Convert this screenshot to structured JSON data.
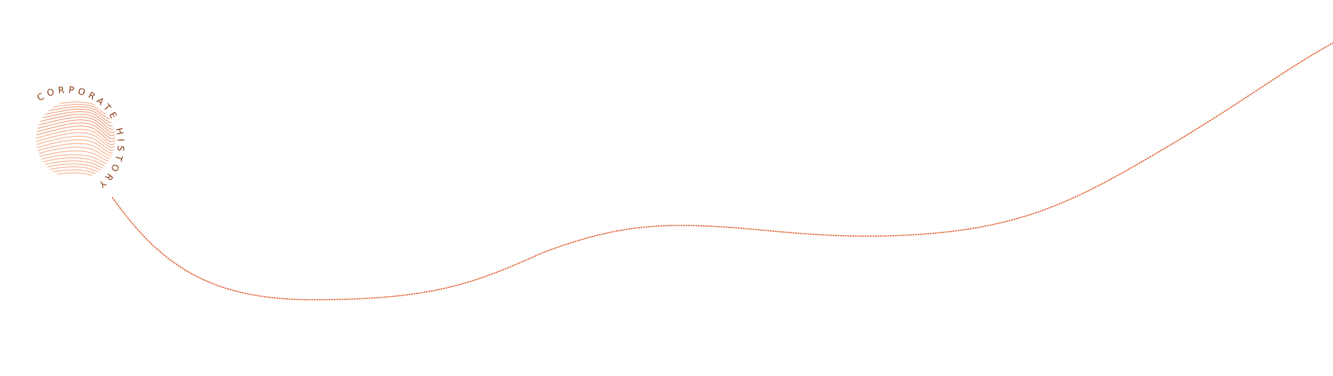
{
  "logo": {
    "text": "CORPORATE HISTORY",
    "text_color": "#8b3a14",
    "lines_color": "#f5a47a",
    "accent_color": "#e0622a"
  },
  "timeline": {
    "path_color": "#e0531f",
    "style": "dotted"
  }
}
